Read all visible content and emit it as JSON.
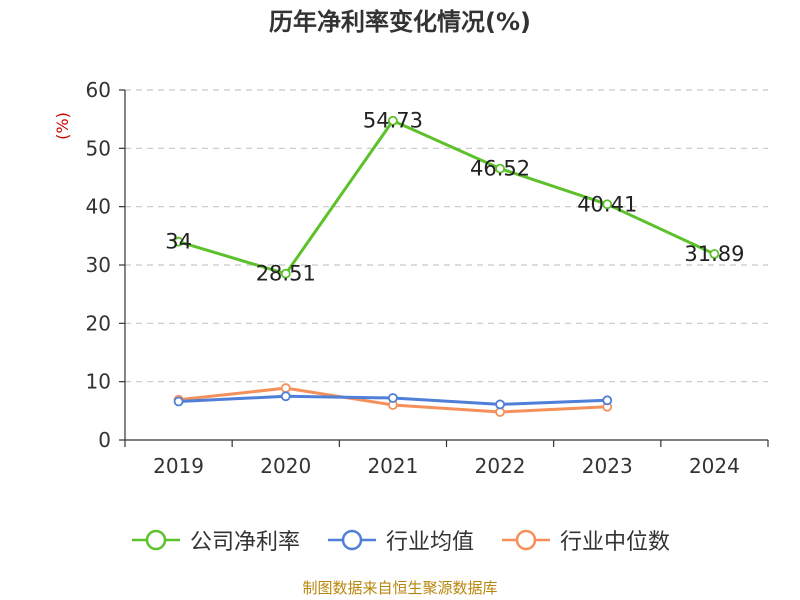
{
  "title": "历年净利率变化情况(%)",
  "source": "制图数据来自恒生聚源数据库",
  "chart_data": {
    "type": "line",
    "title": "历年净利率变化情况(%)",
    "ylabel": "(%)",
    "xlabel": "",
    "ylim": [
      0,
      60
    ],
    "yticks": [
      0,
      10,
      20,
      30,
      40,
      50,
      60
    ],
    "categories": [
      "2019",
      "2020",
      "2021",
      "2022",
      "2023",
      "2024"
    ],
    "grid": true,
    "legend_position": "bottom",
    "series": [
      {
        "name": "公司净利率",
        "color": "#5dc12b",
        "values": [
          34,
          28.51,
          54.73,
          46.52,
          40.41,
          31.89
        ],
        "labels": [
          "34",
          "28.51",
          "54.73",
          "46.52",
          "40.41",
          "31.89"
        ],
        "line_width": 3
      },
      {
        "name": "行业均值",
        "color": "#4f7fd9",
        "values": [
          6.6,
          7.5,
          7.2,
          6.1,
          6.8,
          null
        ],
        "line_width": 3
      },
      {
        "name": "行业中位数",
        "color": "#f5905a",
        "values": [
          6.9,
          8.9,
          6.0,
          4.8,
          5.7,
          null
        ],
        "line_width": 3
      }
    ]
  }
}
